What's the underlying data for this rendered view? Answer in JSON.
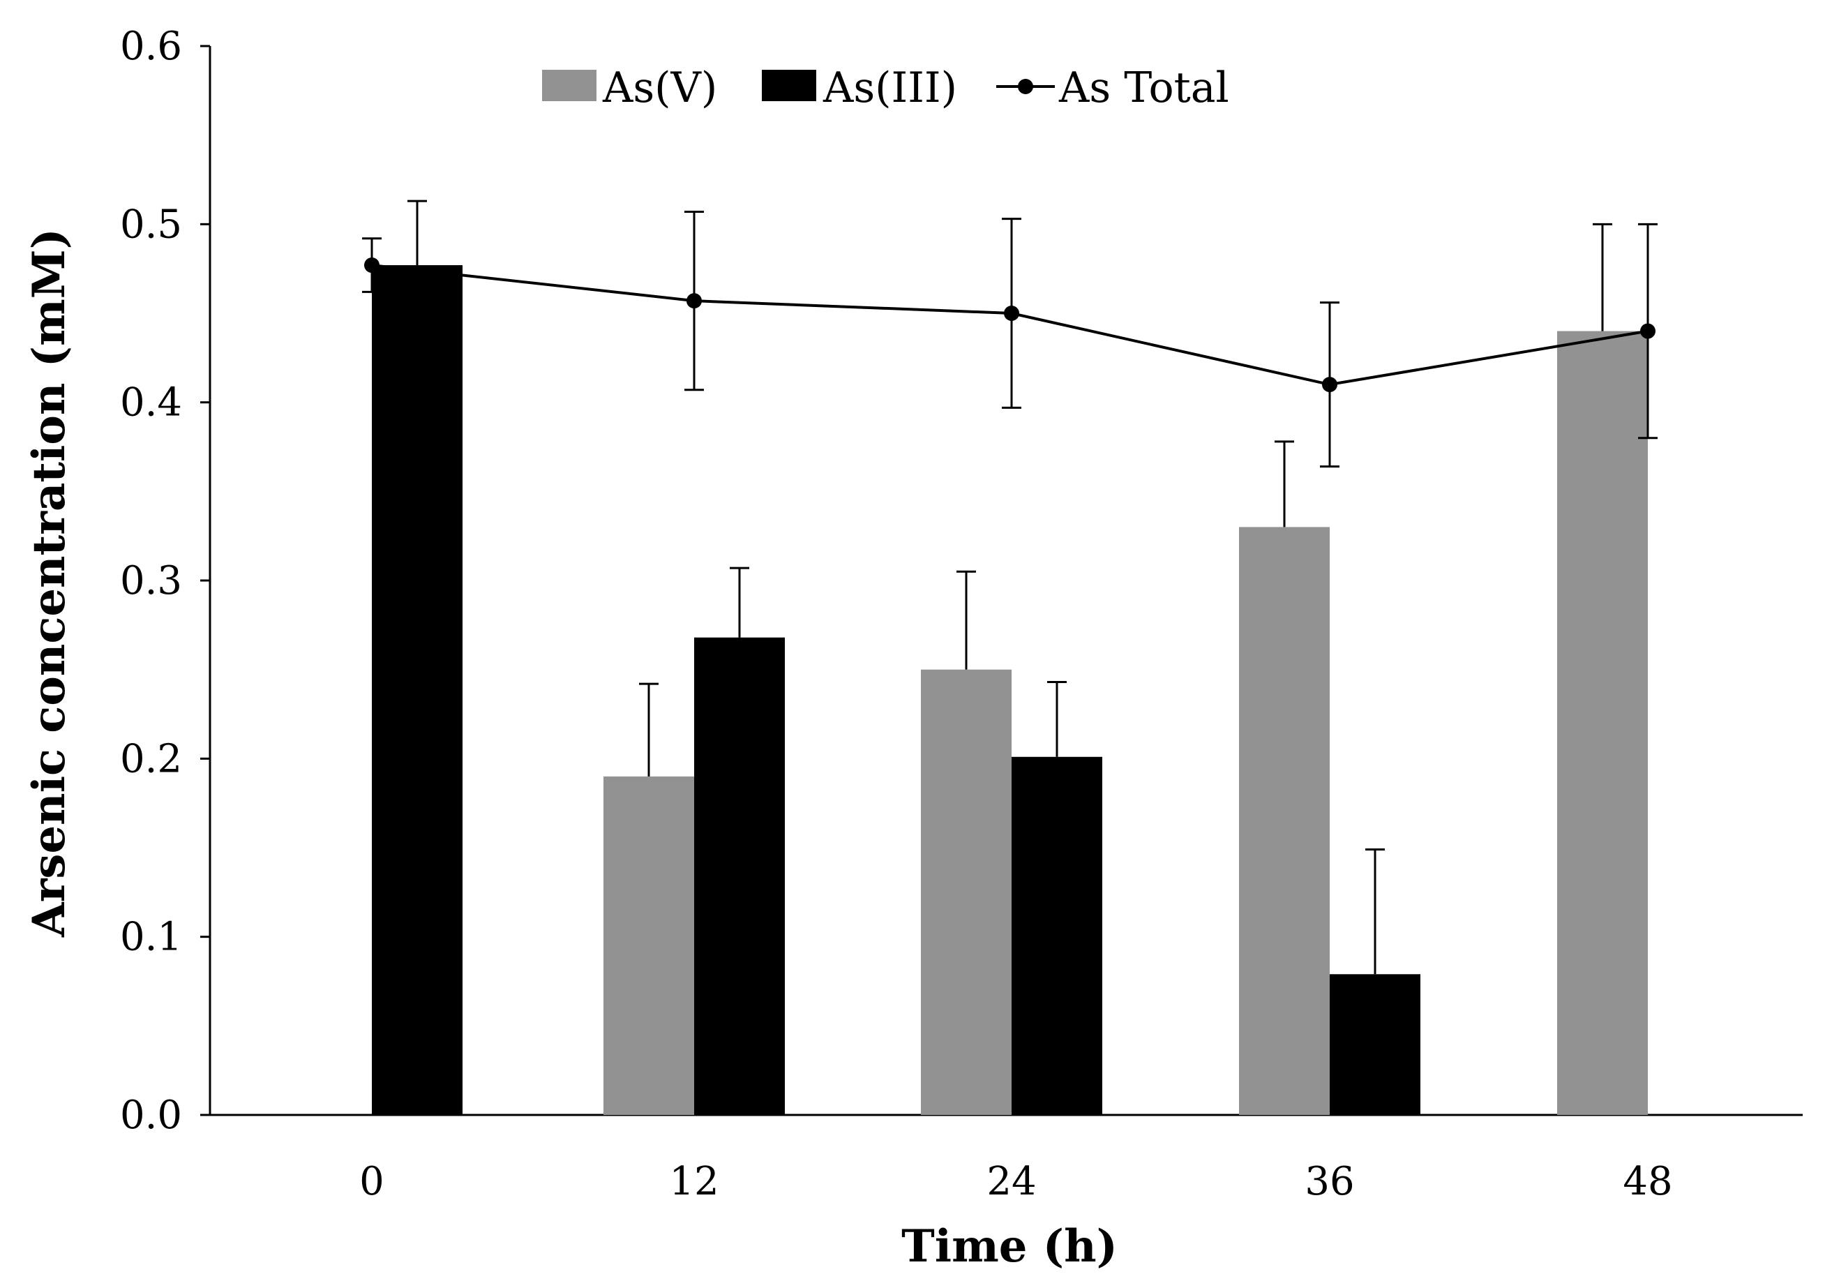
{
  "chart_data": {
    "type": "bar",
    "title": "",
    "xlabel": "Time (h)",
    "ylabel": "Arsenic concentration (mM)",
    "ylim": [
      0,
      0.6
    ],
    "yticks": [
      "0.0",
      "0.1",
      "0.2",
      "0.3",
      "0.4",
      "0.5",
      "0.6"
    ],
    "ytick_values": [
      0,
      0.1,
      0.2,
      0.3,
      0.4,
      0.5,
      0.6
    ],
    "categories": [
      "0",
      "12",
      "24",
      "36",
      "48"
    ],
    "legend_position": "top-center",
    "grid": false,
    "series": [
      {
        "name": "As(V)",
        "kind": "bar",
        "color": "#929292",
        "values": [
          0,
          0.19,
          0.25,
          0.33,
          0.44
        ],
        "errors": [
          0,
          0.052,
          0.055,
          0.048,
          0.06
        ]
      },
      {
        "name": "As(III)",
        "kind": "bar",
        "color": "#000000",
        "values": [
          0.477,
          0.268,
          0.201,
          0.079,
          0
        ],
        "errors": [
          0.036,
          0.039,
          0.042,
          0.07,
          0
        ]
      },
      {
        "name": "As Total",
        "kind": "line",
        "color": "#000000",
        "values": [
          0.477,
          0.457,
          0.45,
          0.41,
          0.44
        ],
        "errors": [
          0.015,
          0.05,
          0.053,
          0.046,
          0.06
        ]
      }
    ]
  }
}
